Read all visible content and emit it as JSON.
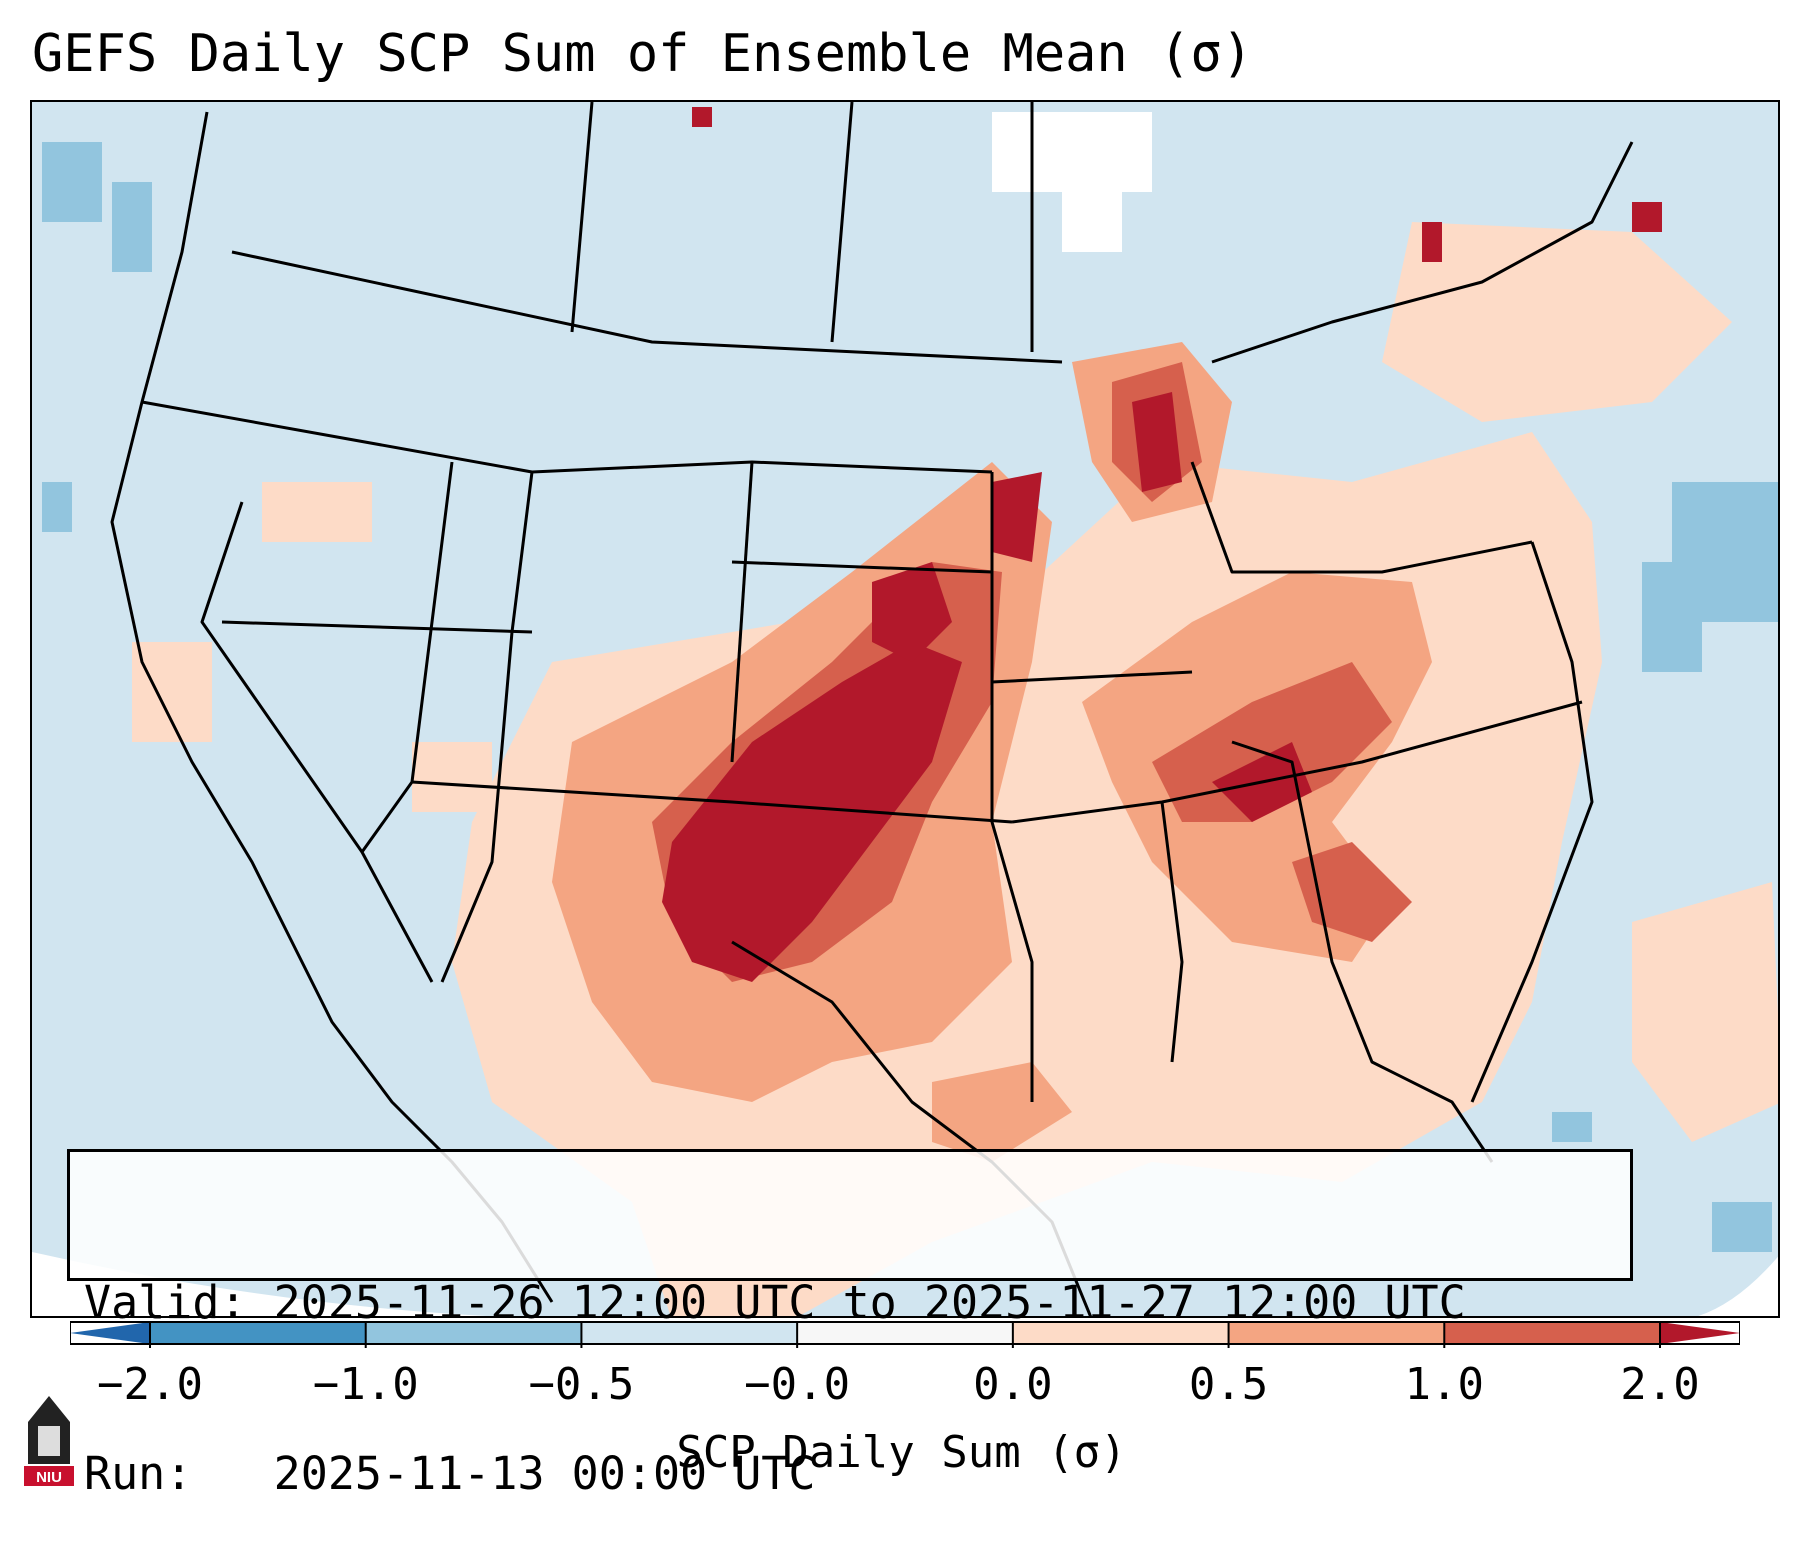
{
  "header": {
    "title": "GEFS Daily SCP Sum of Ensemble Mean (σ)"
  },
  "info": {
    "valid_line": "Valid: 2025-11-26 12:00 UTC to 2025-11-27 12:00 UTC",
    "run_line": "Run:   2025-11-13 00:00 UTC"
  },
  "colorbar": {
    "label": "SCP Daily Sum (σ)",
    "ticks": [
      "−2.0",
      "−1.0",
      "−0.5",
      "−0.0",
      "0.0",
      "0.5",
      "1.0",
      "2.0"
    ],
    "colors": [
      "#4393c3",
      "#92c5de",
      "#d1e5f0",
      "#f7f7f7",
      "#fddbc7",
      "#f4a582",
      "#d6604d"
    ],
    "extend_low_color": "#2166ac",
    "extend_high_color": "#b2182b"
  },
  "map": {
    "background_color": "#d1e5f0",
    "high_color": "#b2182b",
    "region": "Contiguous United States"
  },
  "logo": {
    "text": "NIU"
  }
}
